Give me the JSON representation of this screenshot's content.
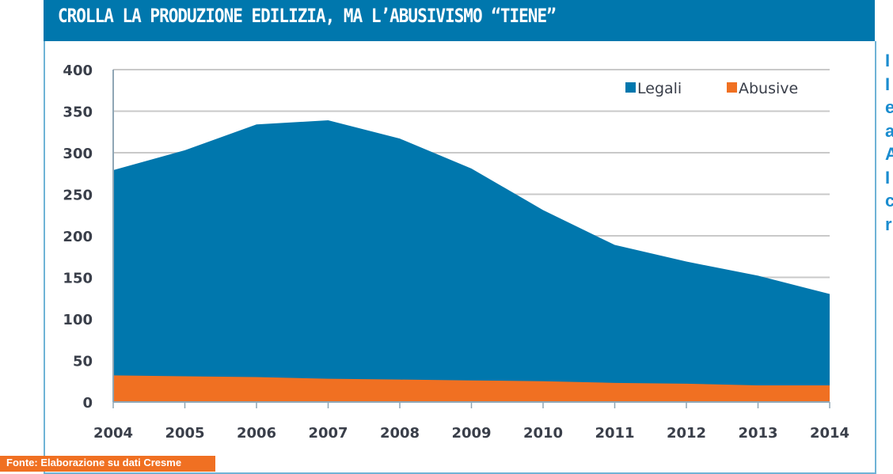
{
  "header": {
    "title": "CROLLA LA PRODUZIONE EDILIZIA, MA L’ABUSIVISMO “TIENE”"
  },
  "footer": {
    "source": "Fonte: Elaborazione su dati Cresme"
  },
  "side_text": {
    "lines": [
      "I",
      "I",
      "e",
      "a",
      "A",
      "I",
      "c",
      "r"
    ]
  },
  "chart_data": {
    "type": "area",
    "title": "CROLLA LA PRODUZIONE EDILIZIA, MA L’ABUSIVISMO “TIENE”",
    "x": [
      "2004",
      "2005",
      "2006",
      "2007",
      "2008",
      "2009",
      "2010",
      "2011",
      "2012",
      "2013",
      "2014"
    ],
    "series": [
      {
        "name": "Legali",
        "color": "#0077ad",
        "values": [
          279,
          303,
          334,
          339,
          317,
          281,
          231,
          189,
          169,
          152,
          130
        ]
      },
      {
        "name": "Abusive",
        "color": "#f07022",
        "values": [
          32,
          31,
          30,
          28,
          27,
          26,
          25,
          23,
          22,
          20,
          20
        ]
      }
    ],
    "ylim": [
      0,
      400
    ],
    "yticks": [
      0,
      50,
      100,
      150,
      200,
      250,
      300,
      350,
      400
    ],
    "grid": true,
    "legend": "top-right"
  }
}
